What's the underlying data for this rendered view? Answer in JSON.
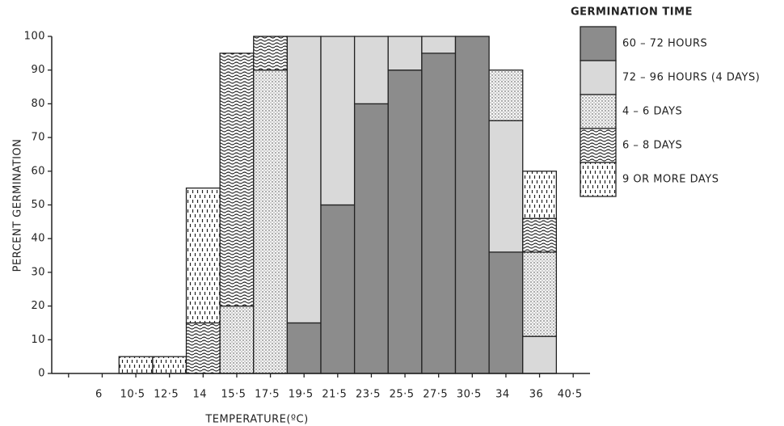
{
  "chart_data": {
    "type": "bar",
    "stacked": true,
    "y_label": "PERCENT GERMINATION",
    "x_label": "TEMPERATURE(ºC)",
    "legend_title": "GERMINATION TIME",
    "legend": "right",
    "categories": [
      null,
      "6",
      "10·5",
      "12·5",
      "14",
      "15·5",
      "17·5",
      "19·5",
      "21·5",
      "23·5",
      "25·5",
      "27·5",
      "30·5",
      "34",
      "36",
      "40·5"
    ],
    "series": [
      {
        "name": "60 – 72 HOURS",
        "color": "#8c8c8c",
        "pattern": "solid",
        "values": [
          null,
          null,
          null,
          null,
          null,
          null,
          null,
          15,
          50,
          80,
          90,
          95,
          100,
          36,
          null,
          null
        ]
      },
      {
        "name": "72 – 96 HOURS (4 DAYS)",
        "color": "#d9d9d9",
        "pattern": "solid",
        "values": [
          null,
          null,
          null,
          null,
          null,
          null,
          null,
          85,
          50,
          20,
          10,
          5,
          null,
          39,
          11,
          null
        ]
      },
      {
        "name": "4 – 6 DAYS",
        "color": "#f2f2f2",
        "pattern": "dots",
        "values": [
          null,
          null,
          null,
          null,
          null,
          20,
          90,
          null,
          null,
          null,
          null,
          null,
          null,
          15,
          25,
          null
        ]
      },
      {
        "name": "6 – 8 DAYS",
        "color": "#ffffff",
        "pattern": "waves",
        "values": [
          null,
          null,
          null,
          null,
          15,
          75,
          10,
          null,
          null,
          null,
          null,
          null,
          null,
          null,
          10,
          null
        ]
      },
      {
        "name": "9 OR MORE DAYS",
        "color": "#ffffff",
        "pattern": "dashes",
        "values": [
          null,
          null,
          5,
          5,
          40,
          null,
          null,
          null,
          null,
          null,
          null,
          null,
          null,
          null,
          14,
          null
        ]
      }
    ],
    "ylim": [
      0,
      100
    ],
    "yticks": [
      0,
      10,
      20,
      30,
      40,
      50,
      60,
      70,
      80,
      90,
      100
    ]
  }
}
